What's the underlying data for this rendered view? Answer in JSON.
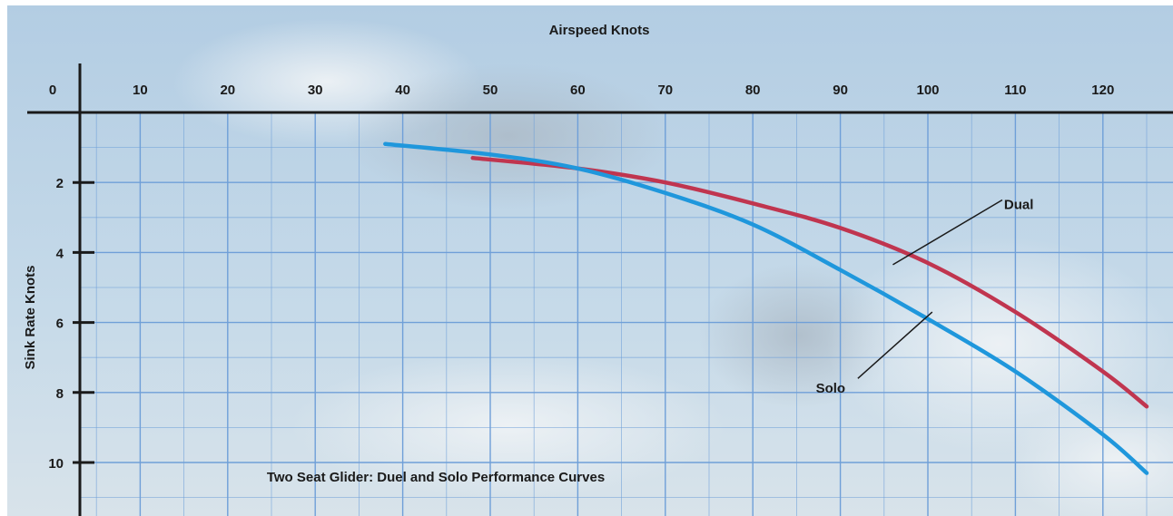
{
  "chart_data": {
    "type": "line",
    "title": "Two Seat Glider: Duel and Solo Performance Curves",
    "xlabel": "Airspeed Knots",
    "ylabel": "Sink Rate Knots",
    "x_axis_position": "top",
    "y_inverted": true,
    "grid": true,
    "xlim": [
      0,
      125
    ],
    "ylim": [
      0,
      11
    ],
    "x_ticks": [
      0,
      10,
      20,
      30,
      40,
      50,
      60,
      70,
      80,
      90,
      100,
      110,
      120
    ],
    "y_ticks": [
      2,
      4,
      6,
      8,
      10
    ],
    "colors": {
      "background_sky": "#bcd3e6",
      "grid": "#6f9fd8",
      "axes": "#1a1a1a",
      "dual": "#c0354f",
      "solo": "#1f97dc"
    },
    "series": [
      {
        "name": "Dual",
        "color": "#c0354f",
        "x": [
          48,
          60,
          70,
          80,
          90,
          100,
          110,
          120,
          125
        ],
        "y": [
          1.3,
          1.6,
          2.0,
          2.6,
          3.3,
          4.3,
          5.7,
          7.4,
          8.4
        ]
      },
      {
        "name": "Solo",
        "color": "#1f97dc",
        "x": [
          38,
          50,
          60,
          70,
          80,
          90,
          100,
          110,
          120,
          125
        ],
        "y": [
          0.9,
          1.2,
          1.6,
          2.3,
          3.2,
          4.5,
          5.9,
          7.4,
          9.2,
          10.3
        ]
      }
    ],
    "annotations": [
      {
        "text": "Dual",
        "points_to_series": "Dual"
      },
      {
        "text": "Solo",
        "points_to_series": "Solo"
      }
    ]
  }
}
